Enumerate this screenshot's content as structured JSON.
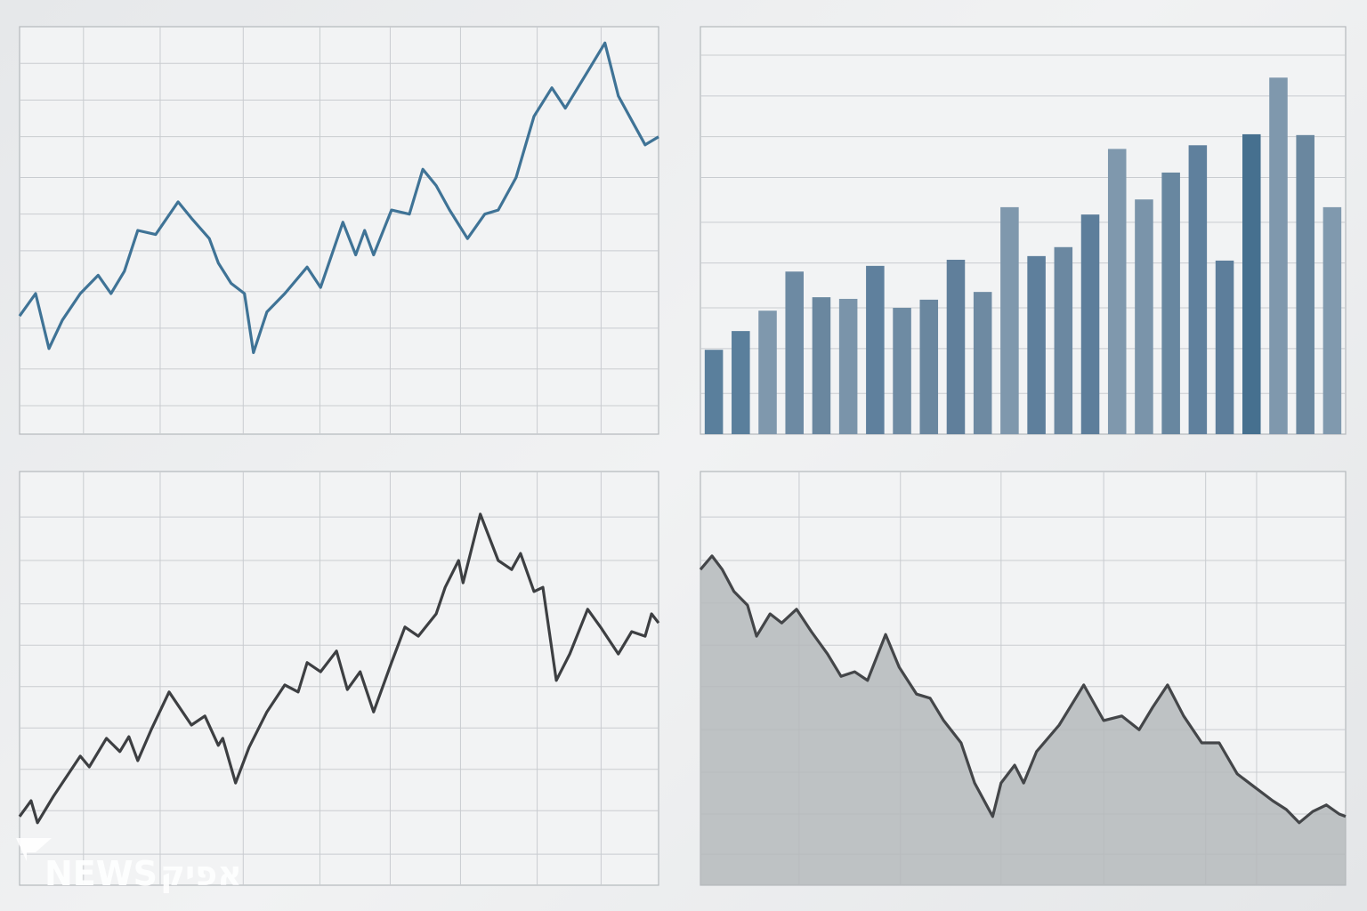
{
  "chart_data": [
    {
      "type": "line",
      "color": "#3f7396",
      "grid": true,
      "xlim": [
        0,
        100
      ],
      "ylim": [
        0,
        100
      ],
      "xticks": [
        10,
        22,
        35,
        47,
        58,
        69,
        81,
        91
      ],
      "yticks": [
        7,
        16,
        26,
        35,
        45,
        54,
        63,
        73,
        82,
        91
      ],
      "x": [
        0,
        2.5,
        4.6,
        6.7,
        9.5,
        12.3,
        14.3,
        16.4,
        18.5,
        21.3,
        24.8,
        26.9,
        29.7,
        31.1,
        33.1,
        35.2,
        36.6,
        38.7,
        41.5,
        45,
        47.1,
        50.6,
        52.6,
        54,
        55.4,
        58.2,
        61,
        63.1,
        65.2,
        67.3,
        70.1,
        72.8,
        74.9,
        77.7,
        80.5,
        83.3,
        85.4,
        88.9,
        91.6,
        93.7,
        95.8,
        97.9,
        100
      ],
      "values": [
        29,
        34.5,
        21,
        28,
        34.5,
        39,
        34.5,
        40,
        50,
        49,
        57,
        53,
        48,
        42,
        37,
        34.5,
        20,
        30,
        34.5,
        41,
        36,
        52,
        44,
        50,
        44,
        55,
        54,
        65,
        61,
        55,
        48,
        54,
        55,
        63,
        78,
        85,
        80,
        89,
        96,
        83,
        77,
        71,
        73
      ]
    },
    {
      "type": "bar",
      "grid": true,
      "ylim": [
        0,
        100
      ],
      "yticks": [
        10,
        21,
        31,
        42,
        52,
        63,
        73,
        83,
        93
      ],
      "values": [
        20.7,
        25.3,
        30.3,
        39.9,
        33.6,
        33.2,
        41.3,
        31,
        33,
        42.8,
        34.9,
        55.7,
        43.7,
        45.9,
        53.9,
        70,
        57.6,
        64.2,
        70.9,
        42.6,
        73.6,
        87.5,
        73.4,
        55.7
      ],
      "colors": [
        "#5a7f9c",
        "#5a7f9c",
        "#7f98ad",
        "#6d8aa3",
        "#6a879f",
        "#7a94aa",
        "#5f809d",
        "#6e8ba3",
        "#6a879f",
        "#607f9b",
        "#6e8aa2",
        "#7f98ad",
        "#5e7f9c",
        "#6b88a1",
        "#5d7e9b",
        "#7f98ad",
        "#7a94aa",
        "#6887a0",
        "#5f809d",
        "#5d7e9b",
        "#46708f",
        "#7f98ad",
        "#6a879f",
        "#8099ae"
      ]
    },
    {
      "type": "line",
      "color": "#3d3f42",
      "grid": true,
      "xlim": [
        0,
        100
      ],
      "ylim": [
        0,
        100
      ],
      "xticks": [
        10,
        22,
        35,
        47,
        58,
        69,
        81,
        91
      ],
      "yticks": [
        7.5,
        18,
        28,
        38,
        48,
        58,
        68,
        78.5,
        89
      ],
      "x": [
        0,
        1.8,
        2.8,
        5.3,
        9.5,
        10.9,
        13.6,
        15.7,
        17.1,
        18.5,
        20.6,
        23.4,
        26.9,
        29,
        31.1,
        31.8,
        33.8,
        35.9,
        38.7,
        41.5,
        43.6,
        45,
        47.1,
        49.6,
        51.3,
        53.3,
        55.4,
        58.2,
        60.3,
        62.4,
        65.2,
        66.6,
        68.7,
        69.4,
        72.1,
        74.9,
        77,
        78.4,
        80.5,
        81.9,
        84,
        86.1,
        88.9,
        90.9,
        93.7,
        95.8,
        97.9,
        98.9,
        100
      ],
      "values": [
        16.6,
        20.4,
        15.1,
        21.5,
        31.2,
        28.6,
        35.5,
        32.3,
        35.9,
        30.1,
        37.6,
        46.7,
        38.7,
        40.9,
        33.8,
        35.5,
        24.7,
        33.3,
        41.9,
        48.4,
        46.7,
        53.8,
        51.6,
        56.6,
        47.3,
        51.6,
        41.9,
        53.8,
        62.4,
        60.2,
        65.6,
        72,
        78.5,
        73.1,
        89.7,
        78.5,
        76.3,
        80.2,
        71,
        72,
        49.5,
        55.9,
        66.7,
        62.4,
        55.9,
        61.3,
        60.2,
        65.6,
        63.4
      ]
    },
    {
      "type": "area",
      "color": "#444649",
      "fill": "#b5b8bb",
      "grid": true,
      "xlim": [
        0,
        100
      ],
      "ylim": [
        0,
        100
      ],
      "xticks": [
        15.3,
        31,
        46.6,
        62.5,
        78.3,
        86.2
      ],
      "yticks": [
        7.5,
        17.2,
        27.3,
        37.6,
        48,
        58,
        68.2,
        78.5,
        89
      ],
      "x": [
        0,
        1.8,
        3.4,
        5.2,
        7.3,
        8.7,
        10.8,
        12.6,
        14.9,
        17.2,
        19.7,
        21.8,
        23.9,
        25.9,
        28.7,
        30.8,
        33.5,
        35.6,
        37.7,
        40.4,
        42.5,
        45.3,
        46.6,
        48.7,
        50.1,
        52.1,
        55.6,
        59.4,
        62.5,
        65.3,
        68,
        70.1,
        72.4,
        74.9,
        77.7,
        80.4,
        83.2,
        85.9,
        88.7,
        90.8,
        92.8,
        94.9,
        97,
        99,
        100
      ],
      "values": [
        76.3,
        79.6,
        76.3,
        71,
        67.7,
        60.2,
        65.6,
        63.4,
        66.7,
        61.3,
        55.9,
        50.5,
        51.6,
        49.5,
        60.6,
        52.7,
        46.2,
        45.2,
        39.8,
        34.4,
        24.7,
        16.6,
        24.7,
        29,
        24.7,
        32.3,
        38.7,
        48.4,
        39.8,
        40.9,
        37.6,
        43,
        48.4,
        40.9,
        34.4,
        34.4,
        26.9,
        23.7,
        20.4,
        18.3,
        15.1,
        17.8,
        19.4,
        17.2,
        16.6
      ]
    }
  ],
  "watermark": {
    "latin": "NEWS",
    "hebrew": "אפיק"
  }
}
